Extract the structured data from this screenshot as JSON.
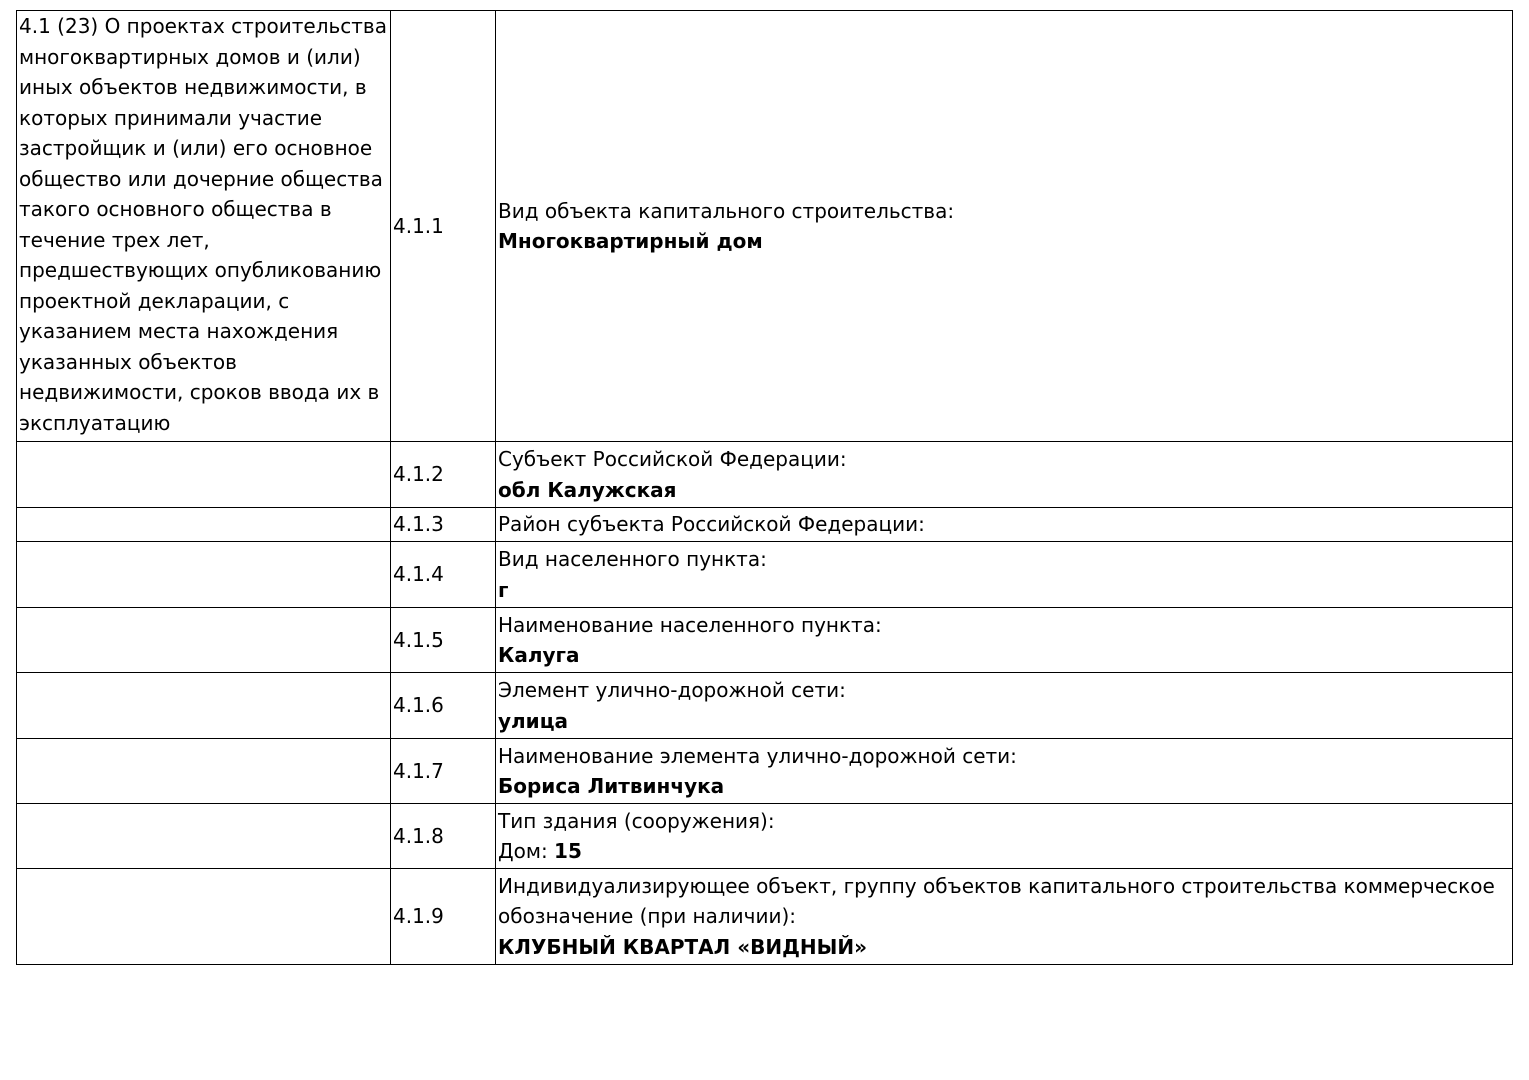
{
  "section_title": "4.1 (23) О проектах строительства многоквартирных домов и (или) иных объектов недвижимости, в которых принимали участие застройщик и (или) его основное общество или дочерние общества такого основного общества в течение трех лет, предшествующих опубликованию проектной декларации, с указанием места нахождения указанных объектов недвижимости, сроков ввода их в эксплуатацию",
  "rows": [
    {
      "code": "4.1.1",
      "label": "Вид объекта капитального строительства:",
      "value_prefix": "",
      "value": "Многоквартирный дом"
    },
    {
      "code": "4.1.2",
      "label": "Субъект Российской Федерации:",
      "value_prefix": "",
      "value": "обл Калужская"
    },
    {
      "code": "4.1.3",
      "label": "Район субъекта Российской Федерации:",
      "value_prefix": "",
      "value": ""
    },
    {
      "code": "4.1.4",
      "label": "Вид населенного пункта:",
      "value_prefix": "",
      "value": "г"
    },
    {
      "code": "4.1.5",
      "label": "Наименование населенного пункта:",
      "value_prefix": "",
      "value": "Калуга"
    },
    {
      "code": "4.1.6",
      "label": "Элемент улично-дорожной сети:",
      "value_prefix": "",
      "value": "улица"
    },
    {
      "code": "4.1.7",
      "label": "Наименование элемента улично-дорожной сети:",
      "value_prefix": "",
      "value": "Бориса Литвинчука"
    },
    {
      "code": "4.1.8",
      "label": "Тип здания (сооружения):",
      "value_prefix": "Дом: ",
      "value": "15"
    },
    {
      "code": "4.1.9",
      "label": "Индивидуализирующее объект, группу объектов капитального строительства коммерческое обозначение (при наличии):",
      "value_prefix": "",
      "value": "КЛУБНЫЙ КВАРТАЛ «ВИДНЫЙ»"
    }
  ]
}
